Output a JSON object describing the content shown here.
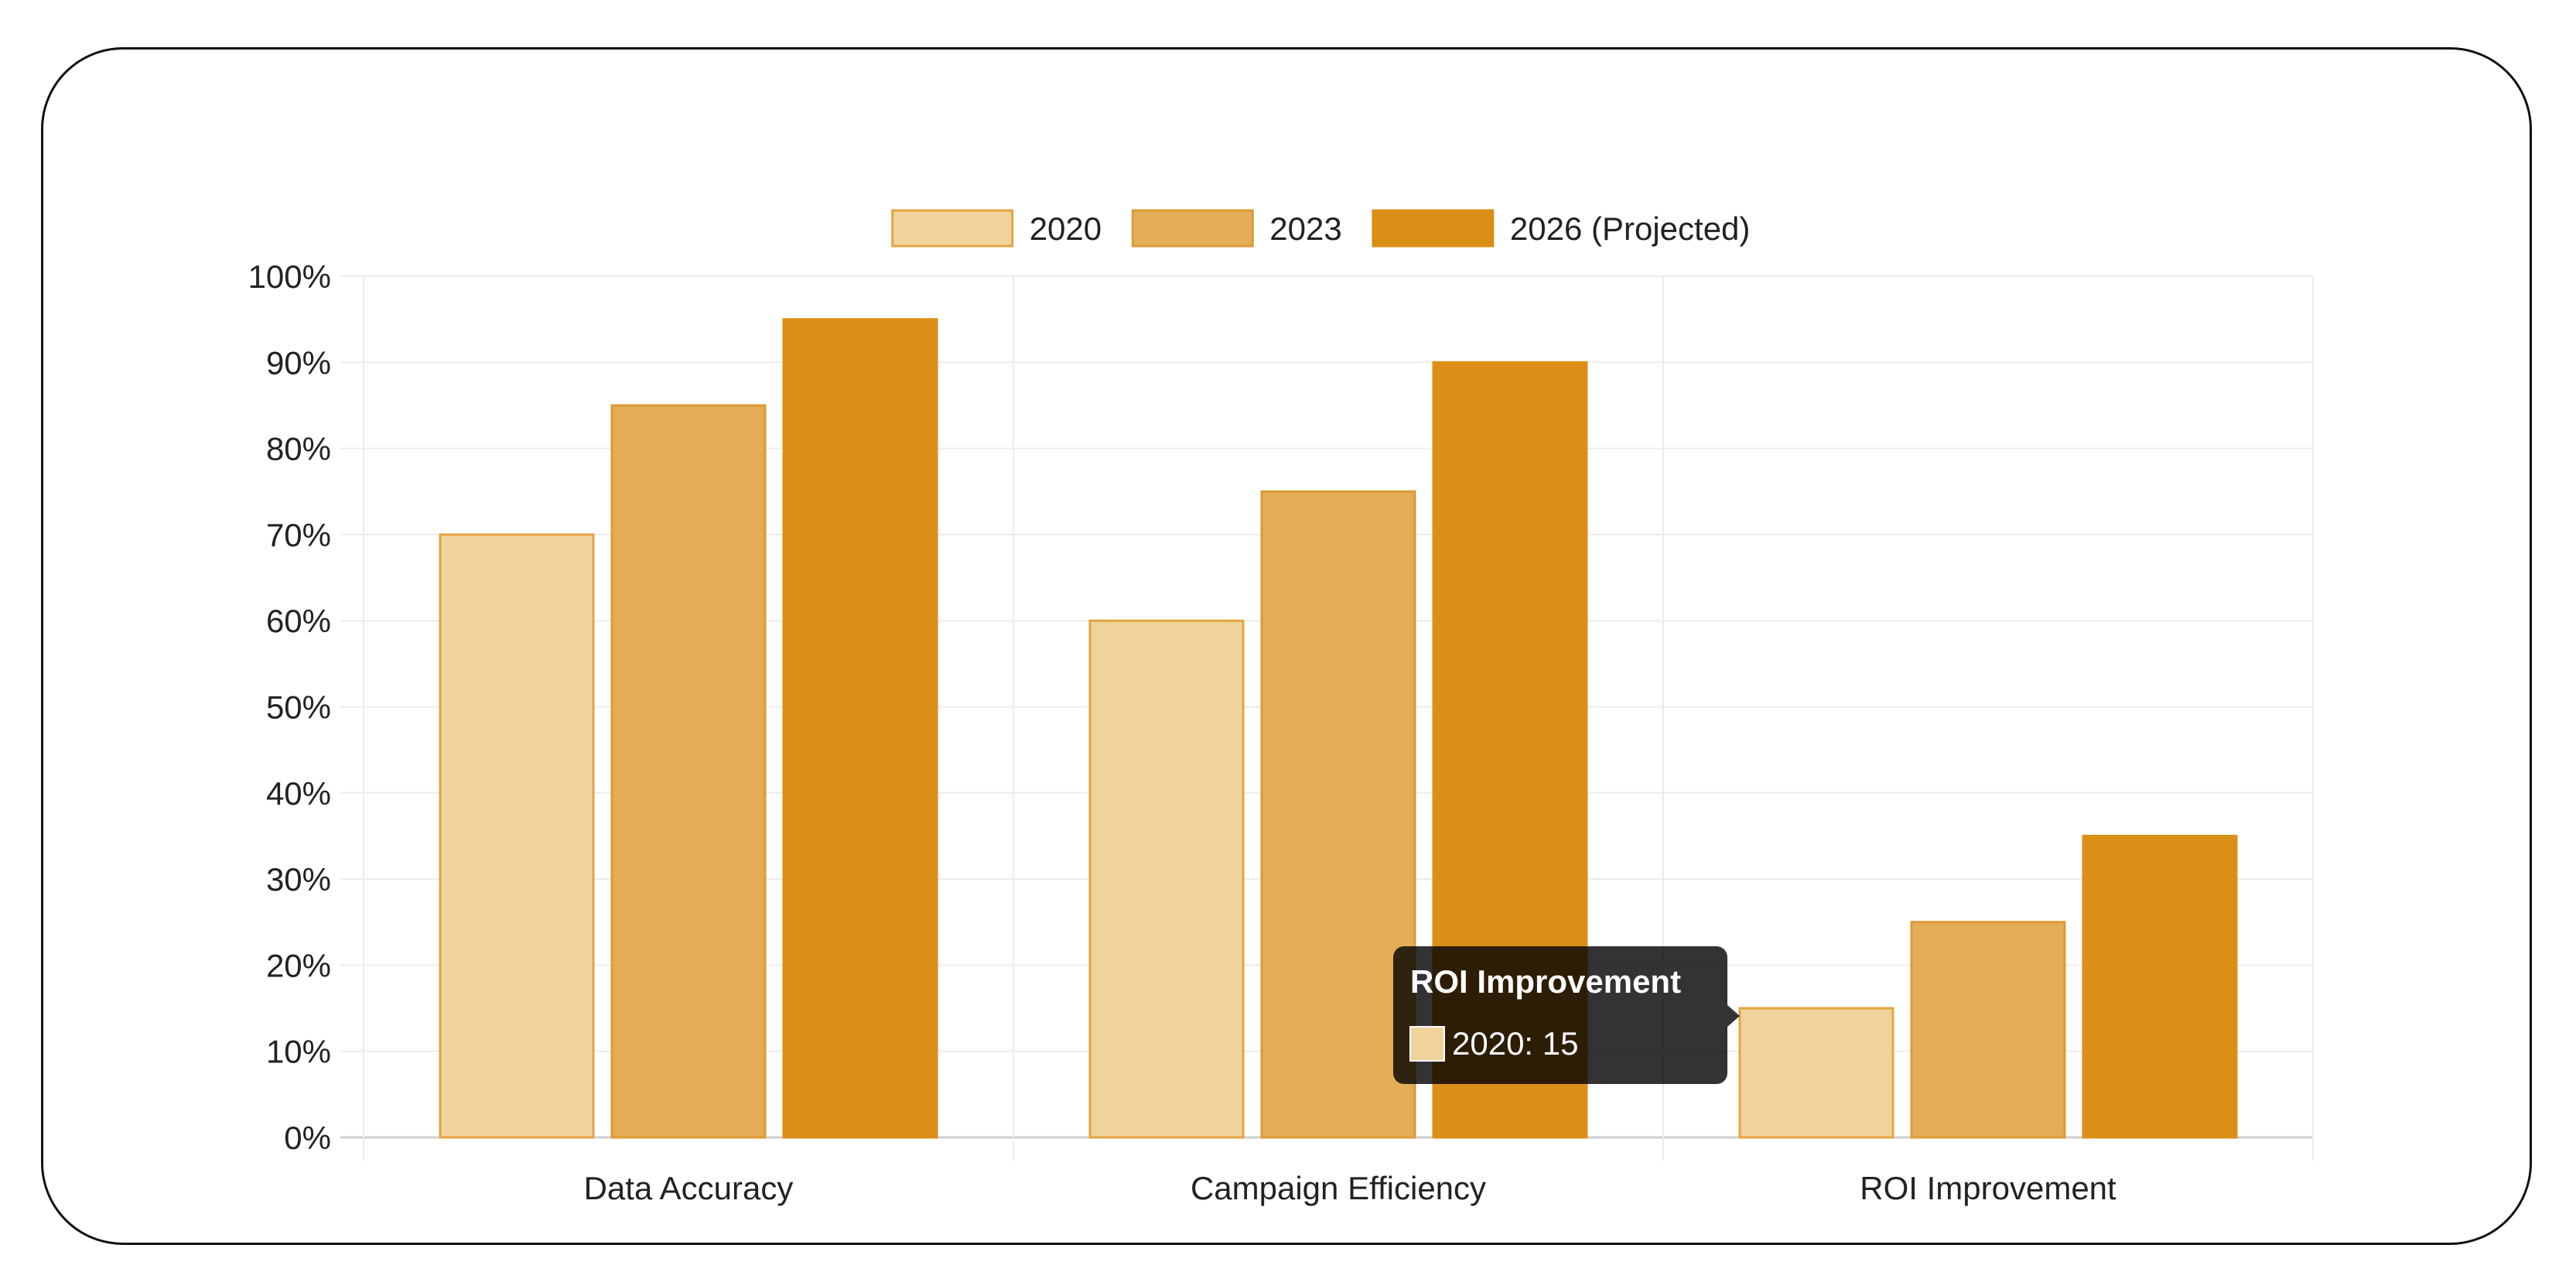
{
  "chart_data": {
    "type": "bar",
    "categories": [
      "Data Accuracy",
      "Campaign Efficiency",
      "ROI Improvement"
    ],
    "series": [
      {
        "name": "2020",
        "values": [
          70,
          60,
          15
        ],
        "color": "#f0d29c",
        "border": "#e3a542"
      },
      {
        "name": "2023",
        "values": [
          85,
          75,
          25
        ],
        "color": "#e4ad58",
        "border": "#dc9a35"
      },
      {
        "name": "2026 (Projected)",
        "values": [
          95,
          90,
          35
        ],
        "color": "#dc8f17",
        "border": "#dc8f17"
      }
    ],
    "ylim": [
      0,
      100
    ],
    "y_ticks": [
      "0%",
      "10%",
      "20%",
      "30%",
      "40%",
      "50%",
      "60%",
      "70%",
      "80%",
      "90%",
      "100%"
    ],
    "grid": true,
    "legend_position": "top",
    "tooltip": {
      "title": "ROI Improvement",
      "text": "2020: 15",
      "series_index": 0,
      "category_index": 2
    }
  }
}
